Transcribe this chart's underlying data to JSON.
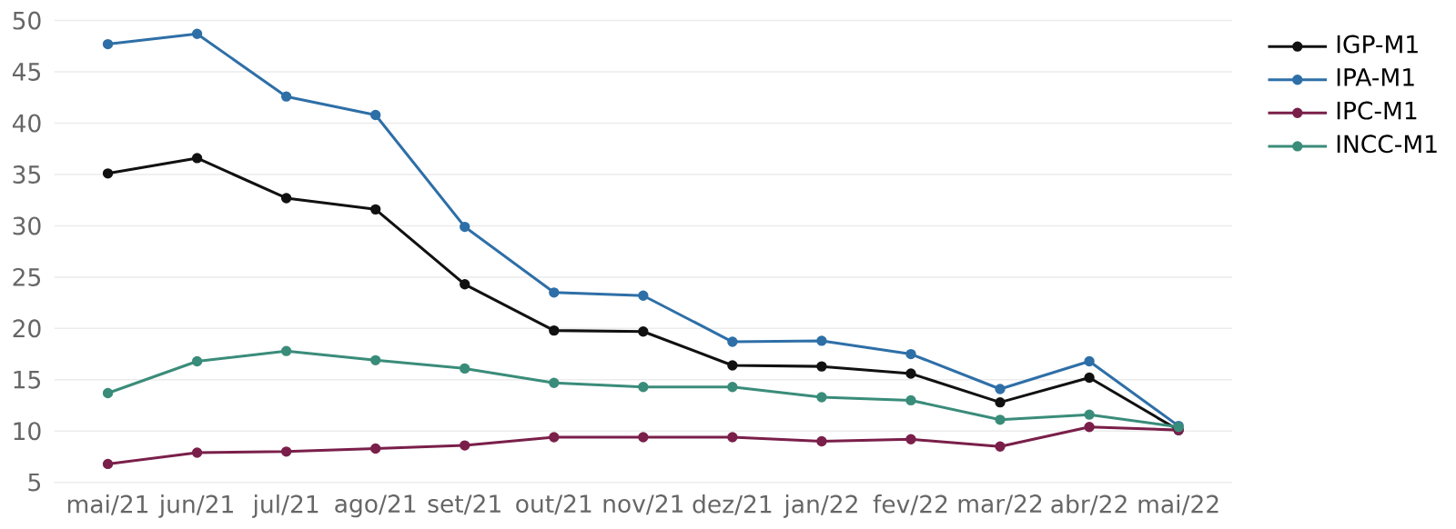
{
  "chart_data": {
    "type": "line",
    "categories": [
      "mai/21",
      "jun/21",
      "jul/21",
      "ago/21",
      "set/21",
      "out/21",
      "nov/21",
      "dez/21",
      "jan/22",
      "fev/22",
      "mar/22",
      "abr/22",
      "mai/22"
    ],
    "series": [
      {
        "name": "IGP-M1",
        "color": "#111111",
        "values": [
          35.1,
          36.6,
          32.7,
          31.6,
          24.3,
          19.8,
          19.7,
          16.4,
          16.3,
          15.6,
          12.8,
          15.2,
          10.1
        ]
      },
      {
        "name": "IPA-M1",
        "color": "#2e6fa7",
        "values": [
          47.7,
          48.7,
          42.6,
          40.8,
          29.9,
          23.5,
          23.2,
          18.7,
          18.8,
          17.5,
          14.1,
          16.8,
          10.5
        ]
      },
      {
        "name": "IPC-M1",
        "color": "#7a1f4a",
        "values": [
          6.8,
          7.9,
          8.0,
          8.3,
          8.6,
          9.4,
          9.4,
          9.4,
          9.0,
          9.2,
          8.5,
          10.4,
          10.1
        ]
      },
      {
        "name": "INCC-M1",
        "color": "#3a8c7a",
        "values": [
          13.7,
          16.8,
          17.8,
          16.9,
          16.1,
          14.7,
          14.3,
          14.3,
          13.3,
          13.0,
          11.1,
          11.6,
          10.4
        ]
      }
    ],
    "ylim": [
      5,
      50
    ],
    "yticks": [
      5,
      10,
      15,
      20,
      25,
      30,
      35,
      40,
      45,
      50
    ],
    "grid": "y",
    "legend": "top right",
    "marker": "circle",
    "line_style": "solid"
  }
}
